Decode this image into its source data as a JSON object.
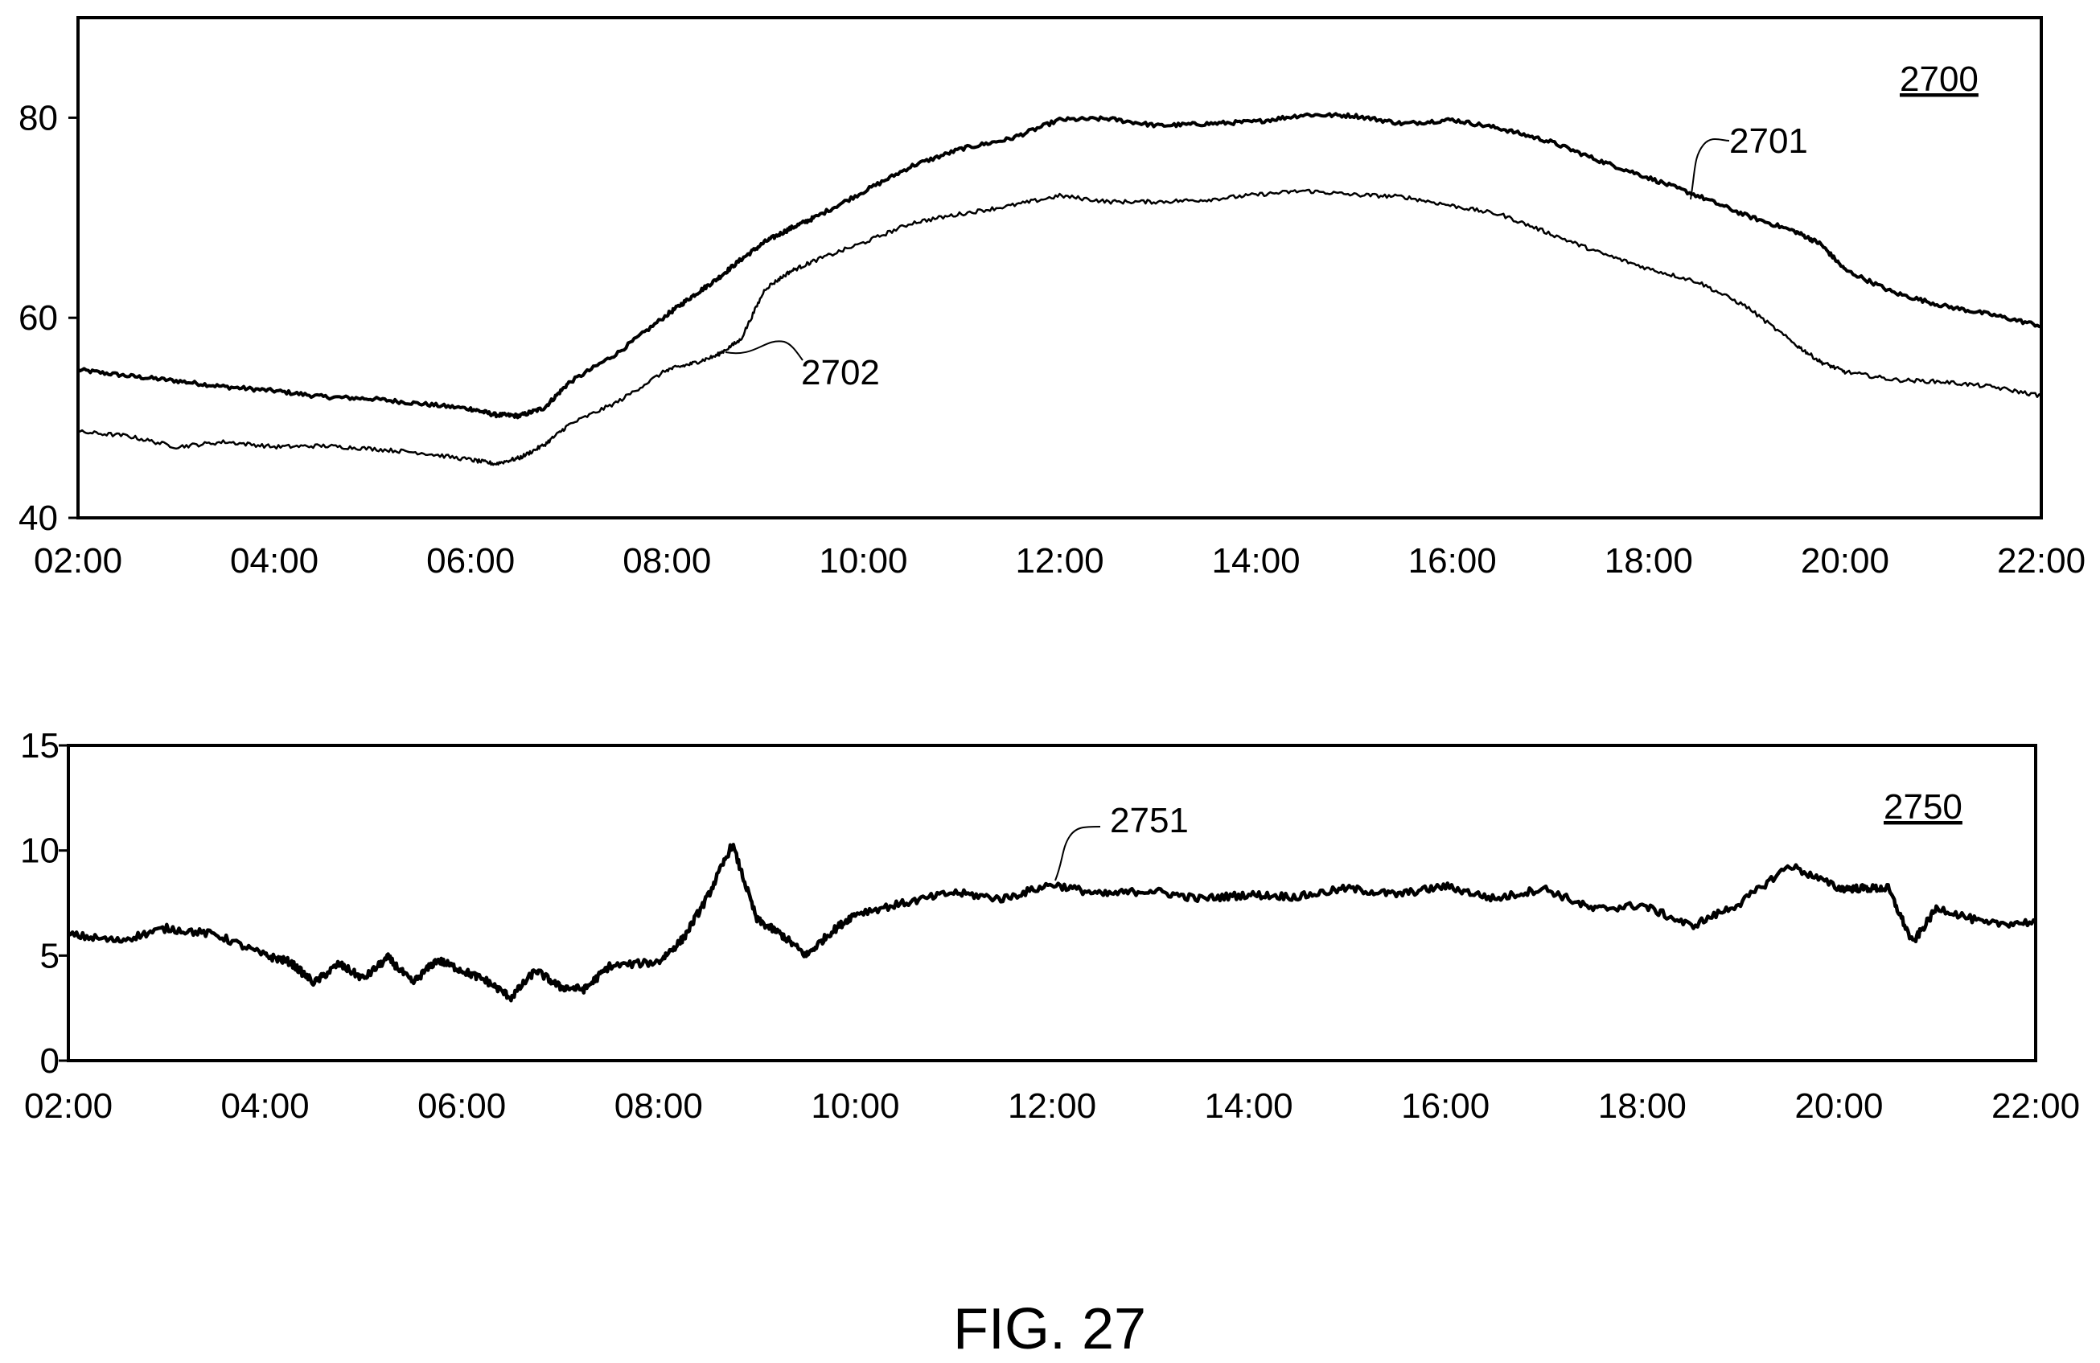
{
  "figure_label": "FIG. 27",
  "chart_data": [
    {
      "type": "line",
      "ref": "2700",
      "x_tick_labels": [
        "02:00",
        "04:00",
        "06:00",
        "08:00",
        "10:00",
        "12:00",
        "14:00",
        "16:00",
        "18:00",
        "20:00",
        "22:00"
      ],
      "y_ticks": [
        40,
        60,
        80
      ],
      "xlim": [
        "02:00",
        "22:00"
      ],
      "ylim": [
        40,
        90
      ],
      "grid": false,
      "x_hours": [
        2,
        2.5,
        3,
        3.5,
        4,
        4.5,
        5,
        5.5,
        6,
        6.25,
        6.5,
        6.75,
        7,
        7.5,
        8,
        8.25,
        8.5,
        8.75,
        9,
        9.25,
        9.5,
        10,
        10.5,
        11,
        11.5,
        12,
        12.5,
        13,
        13.5,
        14,
        14.5,
        15,
        15.5,
        16,
        16.5,
        17,
        17.5,
        18,
        18.5,
        19,
        19.5,
        19.75,
        20,
        20.5,
        21,
        21.5,
        22
      ],
      "series": [
        {
          "callout": "2701",
          "values": [
            54.8,
            54.2,
            53.7,
            53.1,
            52.7,
            52.1,
            51.9,
            51.4,
            50.9,
            50.3,
            50.2,
            51.0,
            53.5,
            56.5,
            60.3,
            62.1,
            63.8,
            65.8,
            67.6,
            68.9,
            70.0,
            72.6,
            75.2,
            76.9,
            77.9,
            79.8,
            79.9,
            79.2,
            79.4,
            79.6,
            80.3,
            80.2,
            79.4,
            79.8,
            78.9,
            77.6,
            75.7,
            74.0,
            72.2,
            70.2,
            68.6,
            67.4,
            64.8,
            62.5,
            61.2,
            60.3,
            59.2
          ]
        },
        {
          "callout": "2702",
          "values": [
            48.6,
            48.2,
            47.1,
            47.6,
            47.1,
            47.2,
            46.9,
            46.5,
            45.8,
            45.4,
            46.0,
            47.3,
            49.3,
            51.6,
            54.8,
            55.4,
            56.2,
            57.8,
            62.9,
            64.6,
            65.7,
            67.5,
            69.5,
            70.4,
            71.2,
            72.2,
            71.6,
            71.6,
            71.8,
            72.3,
            72.7,
            72.3,
            72.1,
            71.2,
            70.3,
            68.4,
            66.5,
            64.9,
            63.6,
            61.1,
            57.3,
            55.6,
            54.6,
            53.8,
            53.6,
            53.1,
            52.2
          ]
        }
      ]
    },
    {
      "type": "line",
      "ref": "2750",
      "x_tick_labels": [
        "02:00",
        "04:00",
        "06:00",
        "08:00",
        "10:00",
        "12:00",
        "14:00",
        "16:00",
        "18:00",
        "20:00",
        "22:00"
      ],
      "y_ticks": [
        0,
        5,
        10,
        15
      ],
      "xlim": [
        "02:00",
        "22:00"
      ],
      "ylim": [
        0,
        15
      ],
      "grid": false,
      "x_hours": [
        2,
        2.5,
        3,
        3.5,
        4,
        4.25,
        4.5,
        4.75,
        5,
        5.25,
        5.5,
        5.75,
        6,
        6.25,
        6.5,
        6.75,
        7,
        7.25,
        7.5,
        8,
        8.25,
        8.5,
        8.75,
        9,
        9.25,
        9.5,
        9.75,
        10,
        10.5,
        11,
        11.5,
        12,
        12.5,
        13,
        13.5,
        14,
        14.5,
        15,
        15.5,
        16,
        16.5,
        17,
        17.5,
        18,
        18.5,
        19,
        19.5,
        20,
        20.25,
        20.5,
        20.75,
        21,
        21.5,
        22
      ],
      "series": [
        {
          "callout": "2751",
          "values": [
            6.0,
            5.7,
            6.3,
            6.0,
            5.0,
            4.7,
            3.7,
            4.6,
            3.9,
            4.9,
            3.7,
            4.8,
            4.3,
            3.8,
            3.0,
            4.3,
            3.5,
            3.4,
            4.5,
            4.7,
            5.8,
            7.8,
            10.3,
            6.7,
            6.0,
            5.0,
            6.1,
            7.0,
            7.5,
            8.0,
            7.7,
            8.4,
            7.9,
            8.1,
            7.7,
            7.9,
            7.8,
            8.2,
            7.9,
            8.3,
            7.7,
            8.2,
            7.2,
            7.4,
            6.4,
            7.5,
            9.3,
            8.2,
            8.2,
            8.2,
            5.6,
            7.3,
            6.5,
            6.6
          ]
        }
      ]
    }
  ]
}
